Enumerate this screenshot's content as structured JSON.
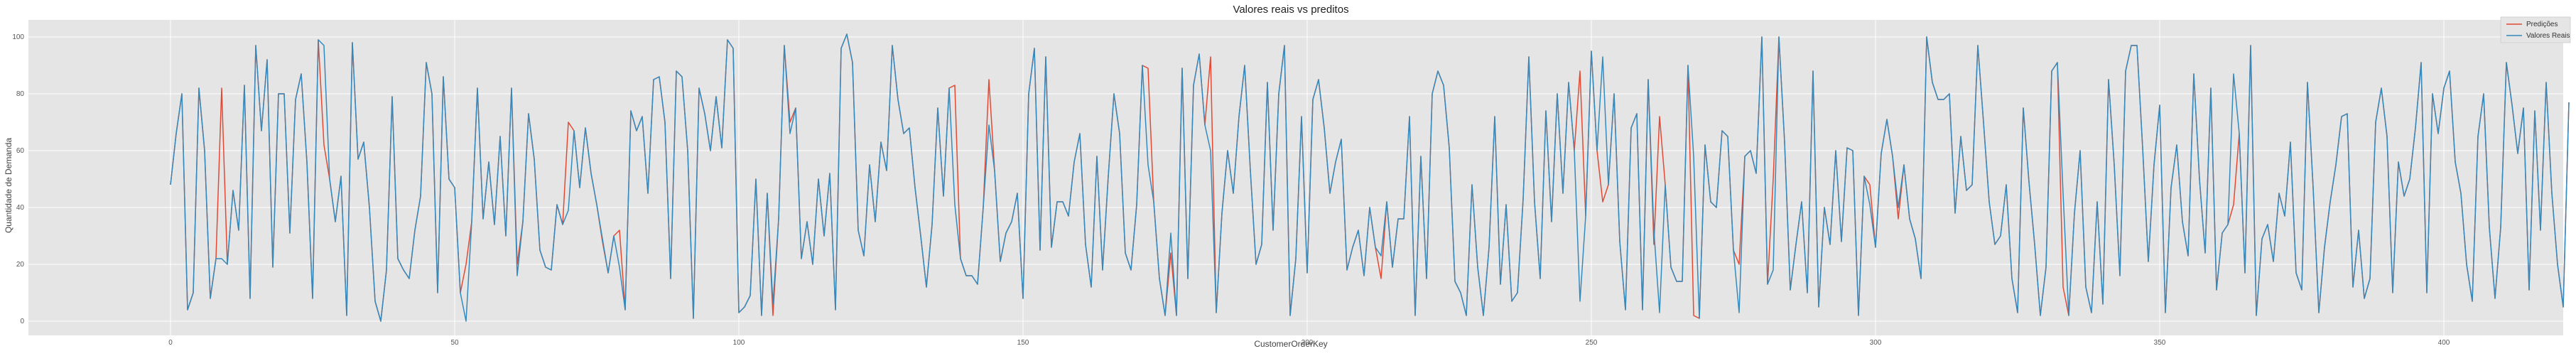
{
  "chart_data": {
    "type": "line",
    "title": "Valores reais vs preditos",
    "xlabel": "CustomerOrderKey",
    "ylabel": "Quantidade de Demanda",
    "xlim": [
      -25,
      421
    ],
    "ylim": [
      -5,
      106
    ],
    "xticks": [
      0,
      50,
      100,
      150,
      200,
      250,
      300,
      350,
      400
    ],
    "yticks": [
      0,
      20,
      40,
      60,
      80,
      100
    ],
    "grid": true,
    "legend_position": "top-right",
    "colors": {
      "background": "#e5e5e5",
      "grid": "#ffffff",
      "predicoes": "#e24a33",
      "valores_reais": "#348abd"
    },
    "series": [
      {
        "name": "Predições",
        "color": "#e24a33",
        "values": [
          48,
          66,
          80,
          4,
          10,
          82,
          60,
          8,
          22,
          82,
          20,
          46,
          32,
          83,
          8,
          97,
          67,
          92,
          19,
          80,
          80,
          31,
          78,
          87,
          56,
          8,
          99,
          62,
          50,
          35,
          51,
          2,
          98,
          57,
          63,
          40,
          7,
          0,
          18,
          79,
          22,
          18,
          15,
          32,
          44,
          91,
          80,
          10,
          86,
          50,
          47,
          10,
          20,
          35,
          82,
          36,
          56,
          34,
          65,
          30,
          82,
          20,
          35,
          73,
          57,
          25,
          19,
          18,
          41,
          34,
          70,
          67,
          47,
          68,
          52,
          41,
          28,
          17,
          30,
          32,
          4,
          74,
          67,
          72,
          45,
          85,
          86,
          70,
          15,
          88,
          86,
          60,
          1,
          82,
          73,
          60,
          79,
          61,
          99,
          96,
          3,
          5,
          9,
          50,
          2,
          45,
          2,
          36,
          97,
          70,
          75,
          22,
          35,
          20,
          50,
          30,
          52,
          4,
          96,
          101,
          91,
          32,
          23,
          55,
          35,
          63,
          53,
          97,
          78,
          66,
          68,
          47,
          30,
          12,
          34,
          75,
          44,
          82,
          83,
          22,
          16,
          16,
          13,
          40,
          85,
          53,
          21,
          31,
          35,
          45,
          8,
          80,
          96,
          25,
          93,
          26,
          42,
          42,
          37,
          56,
          66,
          27,
          12,
          58,
          18,
          51,
          80,
          66,
          24,
          18,
          41,
          90,
          89,
          42,
          15,
          2,
          24,
          2,
          89,
          15,
          83,
          94,
          69,
          93,
          3,
          38,
          60,
          45,
          72,
          90,
          53,
          20,
          27,
          84,
          32,
          80,
          97,
          2,
          22,
          72,
          17,
          78,
          85,
          68,
          45,
          56,
          64,
          18,
          26,
          32,
          16,
          40,
          26,
          15,
          42,
          19,
          36,
          36,
          72,
          2,
          58,
          15,
          80,
          88,
          83,
          61,
          14,
          10,
          2,
          48,
          19,
          2,
          26,
          72,
          13,
          41,
          7,
          10,
          43,
          93,
          42,
          15,
          74,
          35,
          80,
          45,
          84,
          60,
          88,
          37,
          95,
          60,
          42,
          48,
          80,
          28,
          4,
          68,
          73,
          4,
          85,
          27,
          72,
          48,
          19,
          14,
          14,
          90,
          2,
          1,
          62,
          42,
          40,
          67,
          65,
          25,
          20,
          58,
          60,
          52,
          100,
          13,
          50,
          100,
          63,
          11,
          27,
          42,
          10,
          88,
          5,
          40,
          27,
          60,
          28,
          61,
          60,
          2,
          51,
          48,
          26,
          59,
          71,
          58,
          36,
          55,
          36,
          29,
          15,
          100,
          84,
          78,
          78,
          80,
          38,
          65,
          46,
          48,
          97,
          70,
          42,
          27,
          30,
          48,
          15,
          3,
          75,
          49,
          27,
          2,
          19,
          88,
          91,
          12,
          2,
          38,
          60,
          12,
          3,
          42,
          6,
          85,
          55,
          16,
          88,
          97,
          97,
          61,
          21,
          55,
          76,
          3,
          47,
          62,
          35,
          23,
          87,
          50,
          24,
          82,
          11,
          31,
          34,
          41,
          66,
          17,
          97,
          2,
          29,
          34,
          21,
          45,
          37,
          63,
          17,
          11,
          84,
          47,
          3,
          26,
          42,
          55,
          72,
          73,
          12,
          32,
          8,
          15,
          70,
          82,
          65,
          10,
          56,
          44,
          50,
          68,
          91,
          10,
          80,
          66,
          82,
          88,
          56,
          45,
          20,
          7,
          65,
          80,
          33,
          8,
          33,
          91,
          76,
          59,
          75,
          11,
          74,
          32,
          84,
          45,
          20,
          5,
          77
        ],
        "note": ""
      },
      {
        "name": "Valores Reais",
        "color": "#348abd",
        "values": []
      }
    ]
  }
}
